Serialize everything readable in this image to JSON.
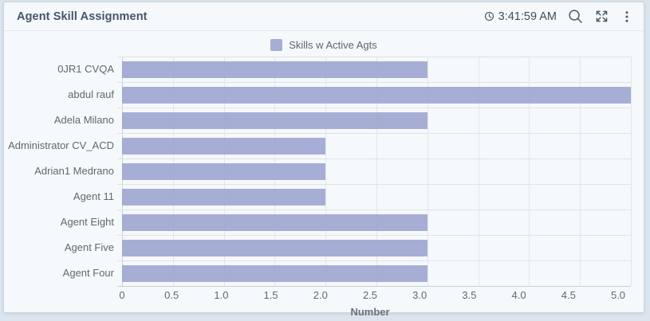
{
  "header": {
    "title": "Agent Skill Assignment",
    "time": "3:41:59 AM"
  },
  "legend": {
    "items": [
      {
        "label": "Skills w Active Agts",
        "color": "#a7aed5"
      }
    ]
  },
  "chart_data": {
    "type": "bar",
    "orientation": "horizontal",
    "title": "Agent Skill Assignment",
    "categories": [
      "0JR1 CVQA",
      "abdul rauf",
      "Adela Milano",
      "Administrator CV_ACD",
      "Adrian1 Medrano",
      "Agent 11",
      "Agent Eight",
      "Agent Five",
      "Agent Four"
    ],
    "series": [
      {
        "name": "Skills w Active Agts",
        "values": [
          3,
          5,
          3,
          2,
          2,
          2,
          3,
          3,
          3
        ],
        "color": "rgba(153,161,206,0.85)"
      }
    ],
    "xlabel": "Number",
    "ylabel": "",
    "xlim": [
      0,
      5
    ],
    "xticks": [
      0,
      0.5,
      1,
      1.5,
      2,
      2.5,
      3,
      3.5,
      4,
      4.5,
      5
    ],
    "xtick_labels": [
      "0",
      "0.5",
      "1.0",
      "1.5",
      "2.0",
      "2.5",
      "3.0",
      "3.5",
      "4.0",
      "4.5",
      "5.0"
    ],
    "grid": true,
    "legend_position": "top"
  }
}
